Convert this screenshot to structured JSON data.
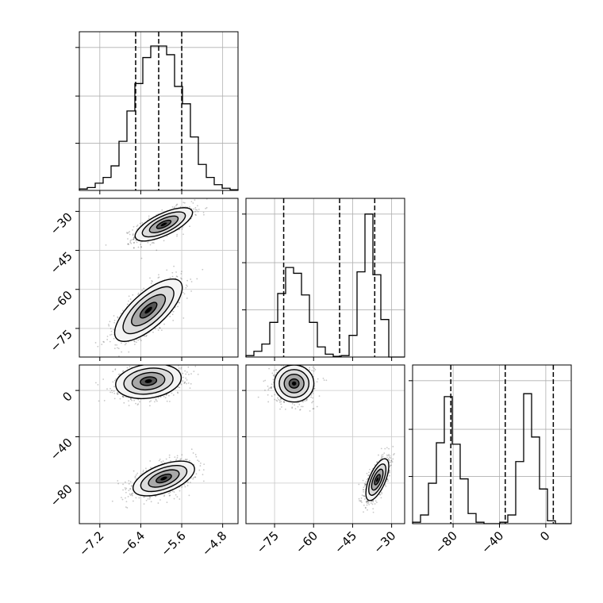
{
  "chart_data": {
    "type": "corner",
    "grid": true,
    "params": [
      {
        "key": "p0",
        "ticks": [
          -7.2,
          -6.4,
          -5.6,
          -4.8
        ],
        "tick_labels": [
          "−7.2",
          "−6.4",
          "−5.6",
          "−4.8"
        ],
        "range": [
          -7.6,
          -4.5
        ],
        "quantiles": [
          -6.5,
          -6.05,
          -5.6
        ],
        "hist": [
          0.01,
          0.02,
          0.05,
          0.09,
          0.17,
          0.34,
          0.55,
          0.74,
          0.92,
          1.0,
          1.0,
          0.94,
          0.72,
          0.6,
          0.37,
          0.18,
          0.09,
          0.04,
          0.015,
          0.005
        ]
      },
      {
        "key": "p1",
        "ticks": [
          -75,
          -60,
          -45,
          -30
        ],
        "tick_labels": [
          "−75",
          "−60",
          "−45",
          "−30"
        ],
        "range": [
          -86,
          -25
        ],
        "quantiles": [
          -71.5,
          -50,
          -36.5
        ],
        "hist": [
          0.01,
          0.04,
          0.09,
          0.24,
          0.44,
          0.62,
          0.58,
          0.43,
          0.24,
          0.07,
          0.02,
          0.005,
          0.01,
          0.15,
          0.59,
          0.99,
          0.57,
          0.26,
          0.0,
          0.0
        ]
      },
      {
        "key": "p2",
        "ticks": [
          -80,
          -40,
          0
        ],
        "tick_labels": [
          "−80",
          "−40",
          "0"
        ],
        "range": [
          -115,
          22
        ],
        "quantiles": [
          -82,
          -35,
          6.5
        ],
        "hist": [
          0.01,
          0.06,
          0.28,
          0.56,
          0.88,
          0.55,
          0.31,
          0.07,
          0.01,
          0.0,
          0.0,
          0.01,
          0.06,
          0.43,
          0.9,
          0.6,
          0.24,
          0.02,
          0.0,
          0.0
        ]
      }
    ],
    "clusters": [
      {
        "center": [
          -5.95,
          -35
        ],
        "spread": [
          0.28,
          3.2
        ],
        "corr": 0.7
      },
      {
        "center": [
          -6.25,
          -68
        ],
        "spread": [
          0.33,
          6
        ],
        "corr": 0.72
      },
      {
        "center": [
          -6.25,
          8
        ],
        "spread": [
          0.32,
          7.5
        ],
        "corr": 0.2
      },
      {
        "center": [
          -5.95,
          -76
        ],
        "spread": [
          0.3,
          7.5
        ],
        "corr": 0.55
      }
    ],
    "pair_12": [
      {
        "center": [
          -67.5,
          6
        ],
        "spread": [
          3.8,
          8
        ],
        "corr": 0.0
      },
      {
        "center": [
          -35.5,
          -77
        ],
        "spread": [
          2.2,
          9
        ],
        "corr": 0.65
      }
    ]
  }
}
